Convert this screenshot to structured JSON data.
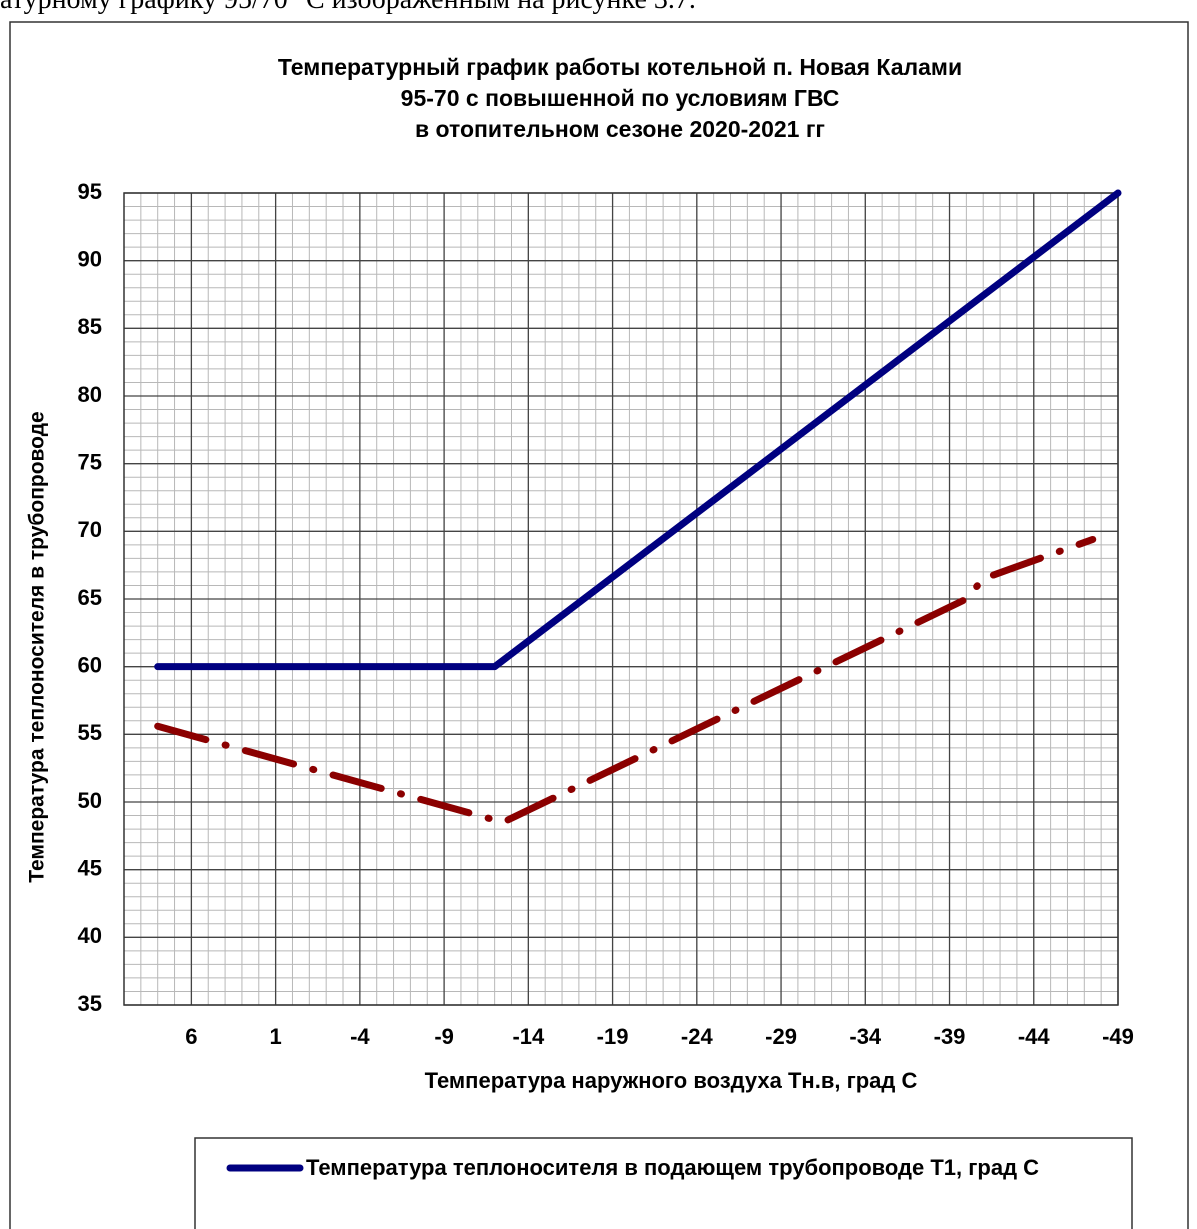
{
  "page_text": "атурному графику 95/70 °С изображенным на рисунке 3.7.",
  "chart_data": {
    "type": "line",
    "title": "Температурный график работы котельной п. Новая Калами\n95-70 с повышенной по условиям ГВС\nв отопительном сезоне 2020-2021 гг",
    "x_label": "Температура наружного воздуха Тн.в, град С",
    "y_label": "Температура теплоносителя в трубопроводе",
    "xlim": [
      10,
      -49
    ],
    "xticks": [
      6,
      1,
      -4,
      -9,
      -14,
      -19,
      -24,
      -29,
      -34,
      -39,
      -44,
      -49
    ],
    "ylim": [
      35,
      95
    ],
    "yticks": [
      35,
      40,
      45,
      50,
      55,
      60,
      65,
      70,
      75,
      80,
      85,
      90,
      95
    ],
    "grid": true,
    "minor_grid_step": 1,
    "series": [
      {
        "name": "Температура теплоносителя в подающем трубопроводе Т1, град С",
        "color": "#000080",
        "style": "solid",
        "x": [
          8,
          -12,
          -49
        ],
        "values": [
          60,
          60,
          95
        ]
      },
      {
        "color": "#8b0000",
        "style": "dashdot",
        "x": [
          8,
          -12.5,
          -40,
          -41,
          -47.5
        ],
        "values": [
          55.6,
          48.5,
          65,
          66.5,
          69.4
        ]
      }
    ]
  }
}
